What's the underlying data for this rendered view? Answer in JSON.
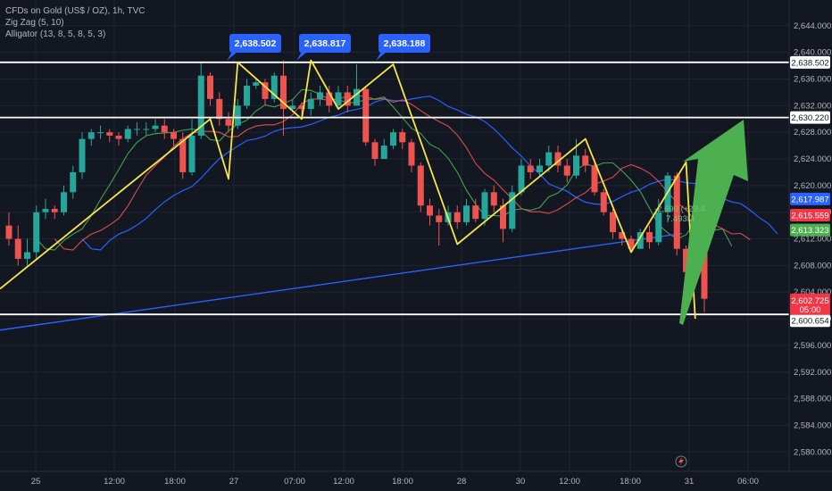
{
  "legend": {
    "symbol": "CFDs on Gold (US$ / OZ), 1h, TVC",
    "indicator1": "Zig Zag (5, 10)",
    "indicator2": "Alligator (13, 8, 5, 8, 5, 3)"
  },
  "colors": {
    "background": "#131722",
    "up": "#26a69a",
    "down": "#ef5350",
    "zigzag": "#f7e64a",
    "alligator_jaw": "#2962ff",
    "alligator_teeth": "#ef5350",
    "alligator_lips": "#4caf50",
    "trendline": "#2962ff",
    "arrow": "#4caf50",
    "callout": "#2962ff"
  },
  "chart_data": {
    "type": "candlestick",
    "y_ticks": [
      "2,644.000",
      "2,640.000",
      "2,636.000",
      "2,632.000",
      "2,628.000",
      "2,624.000",
      "2,620.000",
      "2,616.000",
      "2,612.000",
      "2,608.000",
      "2,604.000",
      "2,600.000",
      "2,596.000",
      "2,592.000",
      "2,588.000",
      "2,584.000",
      "2,580.000"
    ],
    "x_ticks": [
      "25",
      "12:00",
      "18:00",
      "27",
      "07:00",
      "12:00",
      "18:00",
      "28",
      "30",
      "12:00",
      "18:00",
      "31",
      "06:00"
    ],
    "ylim": [
      2578.5,
      2646.5
    ],
    "candles": [
      [
        2614,
        2612,
        2616,
        2611
      ],
      [
        2612,
        2609,
        2614,
        2608
      ],
      [
        2609,
        2610,
        2612,
        2608
      ],
      [
        2610,
        2616,
        2617,
        2609
      ],
      [
        2616,
        2616.5,
        2618,
        2615
      ],
      [
        2616.5,
        2616,
        2617,
        2615
      ],
      [
        2616,
        2619,
        2620,
        2615.5
      ],
      [
        2619,
        2622,
        2623,
        2618
      ],
      [
        2622,
        2627,
        2628,
        2621
      ],
      [
        2627,
        2628,
        2628.5,
        2626
      ],
      [
        2628,
        2628,
        2629,
        2627
      ],
      [
        2628,
        2627.5,
        2628.5,
        2626.5
      ],
      [
        2627.5,
        2627,
        2628,
        2626
      ],
      [
        2627,
        2628.5,
        2629,
        2626.5
      ],
      [
        2628.5,
        2628.5,
        2629.5,
        2627.5
      ],
      [
        2628.5,
        2628.5,
        2629.5,
        2627.5
      ],
      [
        2628.5,
        2629,
        2630,
        2628
      ],
      [
        2629,
        2628,
        2630,
        2627
      ],
      [
        2628,
        2627,
        2628.5,
        2626
      ],
      [
        2627,
        2622,
        2628,
        2621
      ],
      [
        2622,
        2627.5,
        2630,
        2621.5
      ],
      [
        2627.5,
        2636.5,
        2638.5,
        2627
      ],
      [
        2636.5,
        2633,
        2637,
        2632
      ],
      [
        2633,
        2630,
        2634,
        2629
      ],
      [
        2630,
        2629,
        2631,
        2628
      ],
      [
        2629,
        2632,
        2633,
        2628.5
      ],
      [
        2632,
        2635,
        2636,
        2631.5
      ],
      [
        2635,
        2635.5,
        2636,
        2634.5
      ],
      [
        2635.5,
        2633,
        2636,
        2632
      ],
      [
        2633,
        2636.5,
        2637,
        2632.5
      ],
      [
        2636.5,
        2631.5,
        2638.8,
        2627.5
      ],
      [
        2631.5,
        2632,
        2633,
        2631
      ],
      [
        2632,
        2631.5,
        2632.5,
        2630.5
      ],
      [
        2631.5,
        2633,
        2634,
        2630.5
      ],
      [
        2633,
        2634,
        2635,
        2632
      ],
      [
        2634,
        2632,
        2635,
        2631
      ],
      [
        2632,
        2634,
        2635,
        2631.5
      ],
      [
        2634,
        2632,
        2635,
        2631
      ],
      [
        2632,
        2634.5,
        2638.2,
        2632.5
      ],
      [
        2634.5,
        2626.5,
        2635,
        2626
      ],
      [
        2626.5,
        2624,
        2627,
        2623
      ],
      [
        2624,
        2626,
        2627,
        2624
      ],
      [
        2626,
        2628,
        2628.5,
        2625.5
      ],
      [
        2628,
        2626.5,
        2628.5,
        2625.5
      ],
      [
        2626.5,
        2623,
        2627,
        2622
      ],
      [
        2623,
        2617,
        2623.5,
        2616
      ],
      [
        2617,
        2615.5,
        2618,
        2614
      ],
      [
        2615.5,
        2614.5,
        2616.5,
        2611
      ],
      [
        2614.5,
        2616,
        2617,
        2614
      ],
      [
        2616,
        2614.5,
        2617,
        2613.5
      ],
      [
        2614.5,
        2617,
        2618,
        2614
      ],
      [
        2617,
        2615,
        2618,
        2614.5
      ],
      [
        2615,
        2619,
        2619.5,
        2614
      ],
      [
        2619,
        2617,
        2620,
        2616
      ],
      [
        2617,
        2613.5,
        2618,
        2611.5
      ],
      [
        2613.5,
        2619,
        2620,
        2613
      ],
      [
        2619,
        2623,
        2624,
        2618.5
      ],
      [
        2623,
        2622,
        2624,
        2621
      ],
      [
        2622,
        2623,
        2624,
        2621.5
      ],
      [
        2623,
        2625,
        2626,
        2622
      ],
      [
        2625,
        2623,
        2626,
        2622
      ],
      [
        2623,
        2621.5,
        2624,
        2620.5
      ],
      [
        2621.5,
        2624.5,
        2627,
        2621
      ],
      [
        2624.5,
        2623,
        2625.5,
        2622
      ],
      [
        2623,
        2619,
        2624,
        2618.5
      ],
      [
        2619,
        2616,
        2619.5,
        2615.5
      ],
      [
        2616,
        2613,
        2616.5,
        2612
      ],
      [
        2613,
        2612,
        2613.5,
        2611
      ],
      [
        2612,
        2610.5,
        2612.5,
        2610
      ],
      [
        2610.5,
        2613,
        2613.5,
        2610.5
      ],
      [
        2613,
        2611.5,
        2614,
        2610.5
      ],
      [
        2611.5,
        2616,
        2618,
        2611
      ],
      [
        2616,
        2621.5,
        2622,
        2614.5
      ],
      [
        2621.5,
        2610.5,
        2622,
        2609.5
      ],
      [
        2610.5,
        2607,
        2611,
        2606
      ],
      [
        2607,
        2612.5,
        2613,
        2606.5
      ],
      [
        2612.5,
        2603,
        2613,
        2601
      ]
    ],
    "price_labels": [
      "2,638.502",
      "2,630.220",
      "2,617.987",
      "2,615.559",
      "2,613.323",
      "2,602.725",
      "2,600.654"
    ],
    "countdown": "05:00",
    "callouts": [
      "2,638.502",
      "2,638.817",
      "2,638.188"
    ],
    "horizontal_levels": [
      2638.502,
      2630.22,
      2600.654
    ],
    "ruler_text": [
      "-2,690 (+29.4",
      "7.493M"
    ]
  }
}
